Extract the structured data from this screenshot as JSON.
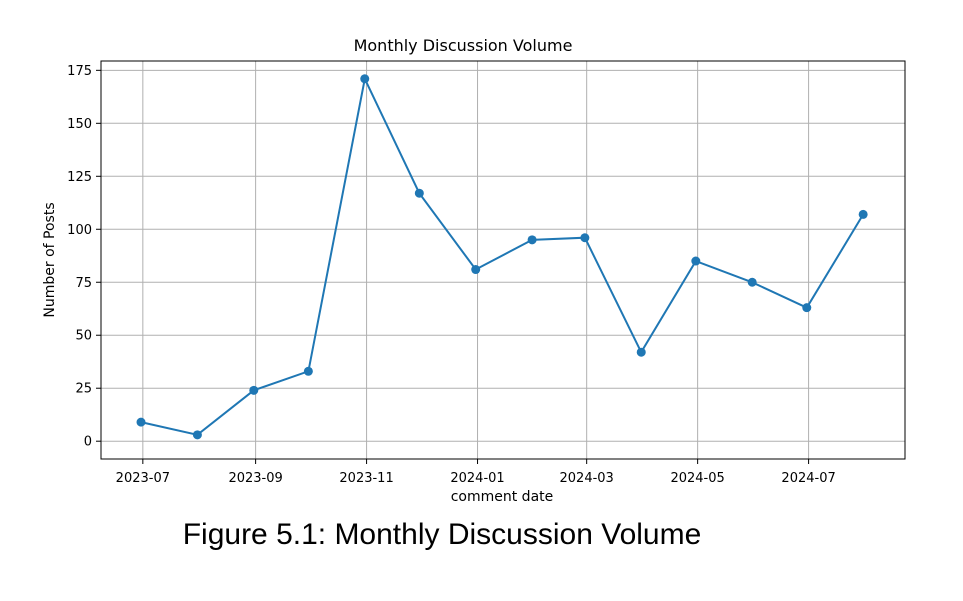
{
  "figure_caption": "Figure 5.1: Monthly Discussion Volume",
  "colors": {
    "series": "#1f77b4",
    "grid": "#b0b0b0",
    "axes": "#000000"
  },
  "chart_data": {
    "type": "line",
    "title": "Monthly Discussion Volume",
    "xlabel": "comment date",
    "ylabel": "Number of Posts",
    "x": [
      "2023-06-30",
      "2023-07-31",
      "2023-08-31",
      "2023-09-30",
      "2023-10-31",
      "2023-11-30",
      "2023-12-31",
      "2024-01-31",
      "2024-02-29",
      "2024-03-31",
      "2024-04-30",
      "2024-05-31",
      "2024-06-30",
      "2024-07-31"
    ],
    "series": [
      {
        "values": [
          9,
          3,
          24,
          33,
          171,
          117,
          81,
          95,
          96,
          42,
          85,
          75,
          63,
          107
        ]
      }
    ],
    "xticks": [
      "2023-07",
      "2023-09",
      "2023-11",
      "2024-01",
      "2024-03",
      "2024-05",
      "2024-07"
    ],
    "xtick_dates": [
      "2023-07-01",
      "2023-09-01",
      "2023-11-01",
      "2024-01-01",
      "2024-03-01",
      "2024-05-01",
      "2024-07-01"
    ],
    "yticks": [
      0,
      25,
      50,
      75,
      100,
      125,
      150,
      175
    ],
    "ylim": [
      -8.4,
      179.4
    ],
    "xlim": [
      "2023-06-08",
      "2024-08-23"
    ],
    "grid": true,
    "marker": "circle"
  }
}
